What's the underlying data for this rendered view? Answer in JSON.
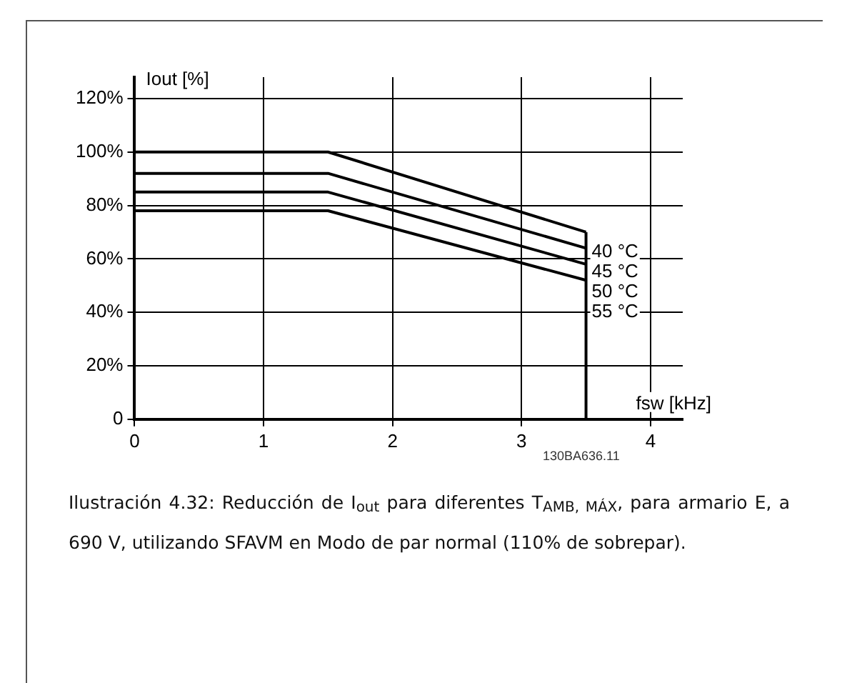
{
  "chart_data": {
    "type": "line",
    "xlabel": "fsw [kHz]",
    "ylabel": "Iout [%]",
    "x": [
      0,
      1.5,
      3.5
    ],
    "series": [
      {
        "name": "40 °C",
        "color": "#000000",
        "values": [
          100,
          100,
          70
        ]
      },
      {
        "name": "45 °C",
        "color": "#000000",
        "values": [
          92,
          92,
          64
        ]
      },
      {
        "name": "50 °C",
        "color": "#000000",
        "values": [
          85,
          85,
          58
        ]
      },
      {
        "name": "55 °C",
        "color": "#000000",
        "values": [
          78,
          78,
          52
        ]
      }
    ],
    "xlim": [
      0,
      4.25
    ],
    "xticks": [
      0,
      1,
      2,
      3,
      4
    ],
    "ylim": [
      0,
      128
    ],
    "yticks": [
      {
        "value": 0,
        "label": "0"
      },
      {
        "value": 20,
        "label": "20%"
      },
      {
        "value": 40,
        "label": "40%"
      },
      {
        "value": 60,
        "label": "60%"
      },
      {
        "value": 80,
        "label": "80%"
      },
      {
        "value": 100,
        "label": "100%"
      },
      {
        "value": 120,
        "label": "120%"
      }
    ],
    "ref_lines": [
      {
        "axis": "x",
        "value": 3.5,
        "label": null
      }
    ],
    "grid": true,
    "legend": false,
    "marker": "none",
    "line_style": "solid",
    "annotations": [
      "130BA636.11",
      "Ilustración 4.32: Reducción de I$_{out}$ para diferentes T$_{AMB, MÁX}$, para armario E, a 690 V, utilizando SFAVM en Modo de par normal (110% de sobrepar)."
    ]
  }
}
